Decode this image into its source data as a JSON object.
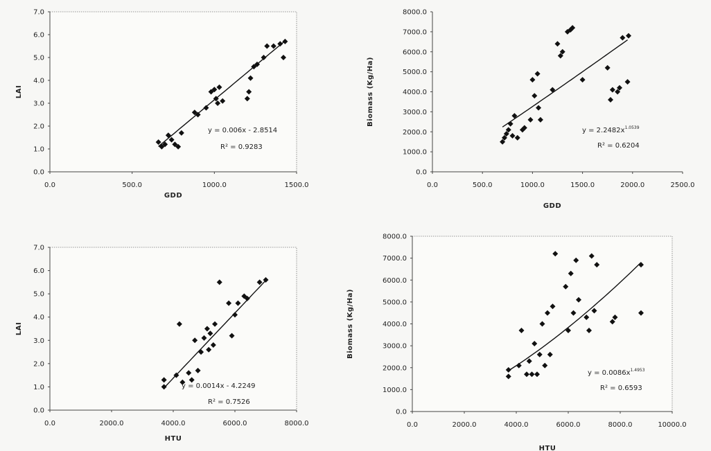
{
  "chart_data": [
    {
      "type": "scatter",
      "xlabel": "GDD",
      "ylabel": "LAI",
      "xlim": [
        0,
        1500
      ],
      "ylim": [
        0,
        7
      ],
      "xticks": [
        "0.0",
        "500.0",
        "1000.0",
        "1500.0"
      ],
      "yticks": [
        "0.0",
        "1.0",
        "2.0",
        "3.0",
        "4.0",
        "5.0",
        "6.0",
        "7.0"
      ],
      "equation": "y = 0.006x - 2.8514",
      "r2": "R² = 0.9283",
      "trendline": {
        "form": "linear",
        "a": 0.006,
        "b": -2.8514,
        "x_range": [
          660,
          1430
        ]
      },
      "points": [
        [
          660,
          1.3
        ],
        [
          680,
          1.1
        ],
        [
          700,
          1.2
        ],
        [
          720,
          1.6
        ],
        [
          740,
          1.4
        ],
        [
          760,
          1.2
        ],
        [
          780,
          1.1
        ],
        [
          800,
          1.7
        ],
        [
          880,
          2.6
        ],
        [
          900,
          2.5
        ],
        [
          950,
          2.8
        ],
        [
          980,
          3.5
        ],
        [
          1000,
          3.6
        ],
        [
          1010,
          3.2
        ],
        [
          1020,
          3.0
        ],
        [
          1030,
          3.7
        ],
        [
          1050,
          3.1
        ],
        [
          1200,
          3.2
        ],
        [
          1210,
          3.5
        ],
        [
          1220,
          4.1
        ],
        [
          1240,
          4.6
        ],
        [
          1260,
          4.7
        ],
        [
          1300,
          5.0
        ],
        [
          1320,
          5.5
        ],
        [
          1360,
          5.5
        ],
        [
          1400,
          5.6
        ],
        [
          1420,
          5.0
        ],
        [
          1430,
          5.7
        ]
      ]
    },
    {
      "type": "scatter",
      "xlabel": "GDD",
      "ylabel": "Biomass (Kg/Ha)",
      "xlim": [
        0,
        2500
      ],
      "ylim": [
        0,
        8000
      ],
      "xticks": [
        "0.0",
        "500.0",
        "1000.0",
        "1500.0",
        "2000.0",
        "2500.0"
      ],
      "yticks": [
        "0.0",
        "1000.0",
        "2000.0",
        "3000.0",
        "4000.0",
        "5000.0",
        "6000.0",
        "7000.0",
        "8000.0"
      ],
      "equation": "y = 2.2482x",
      "equation_exponent": "1.0539",
      "r2": "R² = 0.6204",
      "trendline": {
        "form": "power",
        "a": 2.2482,
        "b": 1.0539,
        "x_range": [
          700,
          1950
        ]
      },
      "points": [
        [
          700,
          1500
        ],
        [
          720,
          1700
        ],
        [
          740,
          1900
        ],
        [
          760,
          2100
        ],
        [
          780,
          2400
        ],
        [
          800,
          1800
        ],
        [
          820,
          2800
        ],
        [
          850,
          1700
        ],
        [
          900,
          2100
        ],
        [
          920,
          2200
        ],
        [
          980,
          2600
        ],
        [
          1000,
          4600
        ],
        [
          1020,
          3800
        ],
        [
          1050,
          4900
        ],
        [
          1060,
          3200
        ],
        [
          1080,
          2600
        ],
        [
          1200,
          4100
        ],
        [
          1250,
          6400
        ],
        [
          1280,
          5800
        ],
        [
          1300,
          6000
        ],
        [
          1350,
          7000
        ],
        [
          1380,
          7100
        ],
        [
          1400,
          7200
        ],
        [
          1500,
          4600
        ],
        [
          1750,
          5200
        ],
        [
          1780,
          3600
        ],
        [
          1800,
          4100
        ],
        [
          1850,
          4000
        ],
        [
          1870,
          4200
        ],
        [
          1900,
          6700
        ],
        [
          1950,
          4500
        ],
        [
          1960,
          6800
        ]
      ]
    },
    {
      "type": "scatter",
      "xlabel": "HTU",
      "ylabel": "LAI",
      "xlim": [
        0,
        8000
      ],
      "ylim": [
        0,
        7
      ],
      "xticks": [
        "0.0",
        "2000.0",
        "4000.0",
        "6000.0",
        "8000.0"
      ],
      "yticks": [
        "0.0",
        "1.0",
        "2.0",
        "3.0",
        "4.0",
        "5.0",
        "6.0",
        "7.0"
      ],
      "equation": "y = 0.0014x - 4.2249",
      "r2": "R² = 0.7526",
      "trendline": {
        "form": "linear",
        "a": 0.0014,
        "b": -4.2249,
        "x_range": [
          3700,
          7000
        ]
      },
      "points": [
        [
          3700,
          1.0
        ],
        [
          3700,
          1.3
        ],
        [
          4100,
          1.5
        ],
        [
          4200,
          3.7
        ],
        [
          4300,
          1.2
        ],
        [
          4500,
          1.6
        ],
        [
          4600,
          1.3
        ],
        [
          4700,
          3.0
        ],
        [
          4800,
          1.7
        ],
        [
          4900,
          2.5
        ],
        [
          5000,
          3.1
        ],
        [
          5100,
          3.5
        ],
        [
          5150,
          2.6
        ],
        [
          5200,
          3.3
        ],
        [
          5300,
          2.8
        ],
        [
          5350,
          3.7
        ],
        [
          5500,
          5.5
        ],
        [
          5800,
          4.6
        ],
        [
          5900,
          3.2
        ],
        [
          6000,
          4.1
        ],
        [
          6100,
          4.6
        ],
        [
          6300,
          4.9
        ],
        [
          6400,
          4.8
        ],
        [
          6800,
          5.5
        ],
        [
          7000,
          5.6
        ]
      ]
    },
    {
      "type": "scatter",
      "xlabel": "HTU",
      "ylabel": "Biomass (Kg/Ha)",
      "xlim": [
        0,
        10000
      ],
      "ylim": [
        0,
        8000
      ],
      "xticks": [
        "0.0",
        "2000.0",
        "4000.0",
        "6000.0",
        "8000.0",
        "10000.0"
      ],
      "yticks": [
        "0.0",
        "1000.0",
        "2000.0",
        "3000.0",
        "4000.0",
        "5000.0",
        "6000.0",
        "7000.0",
        "8000.0"
      ],
      "equation": "y = 0.0086x",
      "equation_exponent": "1.4953",
      "r2": "R² = 0.6593",
      "trendline": {
        "form": "power",
        "a": 0.0086,
        "b": 1.4953,
        "x_range": [
          3700,
          8800
        ]
      },
      "points": [
        [
          3700,
          1600
        ],
        [
          3700,
          1900
        ],
        [
          4100,
          2100
        ],
        [
          4200,
          3700
        ],
        [
          4400,
          1700
        ],
        [
          4500,
          2300
        ],
        [
          4600,
          1700
        ],
        [
          4700,
          3100
        ],
        [
          4800,
          1700
        ],
        [
          4900,
          2600
        ],
        [
          5000,
          4000
        ],
        [
          5100,
          2100
        ],
        [
          5200,
          4500
        ],
        [
          5300,
          2600
        ],
        [
          5400,
          4800
        ],
        [
          5500,
          7200
        ],
        [
          5900,
          5700
        ],
        [
          6000,
          3700
        ],
        [
          6100,
          6300
        ],
        [
          6200,
          4500
        ],
        [
          6300,
          6900
        ],
        [
          6400,
          5100
        ],
        [
          6700,
          4300
        ],
        [
          6800,
          3700
        ],
        [
          6900,
          7100
        ],
        [
          7000,
          4600
        ],
        [
          7100,
          6700
        ],
        [
          7700,
          4100
        ],
        [
          7800,
          4300
        ],
        [
          8800,
          4500
        ],
        [
          8800,
          6700
        ]
      ]
    }
  ]
}
